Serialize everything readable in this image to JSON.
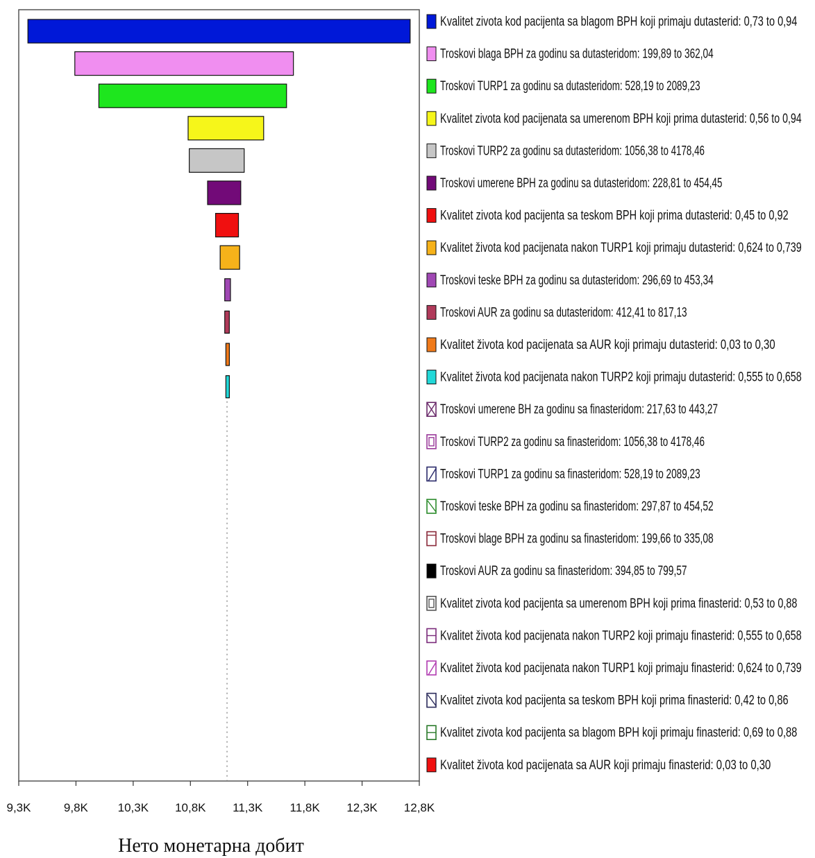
{
  "chart_data": {
    "type": "bar",
    "subtype": "tornado",
    "orientation": "horizontal",
    "xlabel": "Нето монетарна добит",
    "xlim": [
      9.3,
      12.8
    ],
    "x_unit": "K",
    "x_ticks": [
      "9,3K",
      "9,8K",
      "10,3K",
      "10,8K",
      "11,3K",
      "11,8K",
      "12,3K",
      "12,8K"
    ],
    "x_tick_values": [
      9.3,
      9.8,
      10.3,
      10.8,
      11.3,
      11.8,
      12.3,
      12.8
    ],
    "baseline": 11.12,
    "legend_position": "right",
    "series": [
      {
        "name": "Kvalitet zivota kod pacijenta sa blagom BPH koji primaju dutasterid: 0,73 to 0,94",
        "low": 9.38,
        "high": 12.72,
        "color": "#0018d8",
        "swatch": "solid"
      },
      {
        "name": "Troskovi blaga BPH za godinu sa dutasteridom: 199,89 to 362,04",
        "low": 9.79,
        "high": 11.7,
        "color": "#f08ef0",
        "swatch": "solid"
      },
      {
        "name": "Troskovi TURP1 za godinu sa dutasteridom: 528,19 to 2089,23",
        "low": 10.0,
        "high": 11.64,
        "color": "#1ee61e",
        "swatch": "solid"
      },
      {
        "name": "Kvalitet zivota kod pacijenata sa umerenom BPH koji prima dutasterid: 0,56 to 0,94",
        "low": 10.78,
        "high": 11.44,
        "color": "#f6f61a",
        "swatch": "solid"
      },
      {
        "name": "Troskovi TURP2 za godinu sa dutasteridom: 1056,38 to 4178,46",
        "low": 10.79,
        "high": 11.27,
        "color": "#c6c6c6",
        "swatch": "solid"
      },
      {
        "name": "Troskovi umerene BPH za godinu sa dutasteridom: 228,81 to 454,45",
        "low": 10.95,
        "high": 11.24,
        "color": "#720a78",
        "swatch": "solid"
      },
      {
        "name": "Kvalitet zivota kod pacijenta sa teskom BPH koji prima dutasterid: 0,45 to 0,92",
        "low": 11.02,
        "high": 11.22,
        "color": "#f01010",
        "swatch": "solid"
      },
      {
        "name": "Kvalitet života kod pacijenata nakon TURP1 koji primaju dutasterid: 0,624 to 0,739",
        "low": 11.06,
        "high": 11.23,
        "color": "#f6b21a",
        "swatch": "solid"
      },
      {
        "name": "Troskovi teske BPH za godinu sa dutasteridom: 296,69 to 453,34",
        "low": 11.1,
        "high": 11.15,
        "color": "#a048b4",
        "swatch": "solid"
      },
      {
        "name": "Troskovi AUR za godinu sa dutasteridom: 412,41 to 817,13",
        "low": 11.1,
        "high": 11.14,
        "color": "#b03a5a",
        "swatch": "solid"
      },
      {
        "name": "Kvalitet života kod pacijenata sa AUR koji primaju  dutasterid: 0,03 to 0,30",
        "low": 11.11,
        "high": 11.14,
        "color": "#f07a1a",
        "swatch": "solid"
      },
      {
        "name": "Kvalitet života kod pacijenata nakon TURP2 koji primaju dutasterid: 0,555 to 0,658",
        "low": 11.11,
        "high": 11.13,
        "color": "#22d8d8",
        "swatch": "solid"
      },
      {
        "name": "Troskovi umerene BH za godinu sa finasteridom: 217,63 to 443,27",
        "low": 11.12,
        "high": 11.12,
        "color": "#6a2a6a",
        "swatch": "crosshatch"
      },
      {
        "name": "Troskovi TURP2 za godinu sa finasteridom: 1056,38 to 4178,46",
        "low": 11.12,
        "high": 11.12,
        "color": "#9a3a9a",
        "swatch": "box"
      },
      {
        "name": "Troskovi TURP1 za godinu sa finasteridom: 528,19 to 2089,23",
        "low": 11.12,
        "high": 11.12,
        "color": "#2a2a6a",
        "swatch": "diagonal"
      },
      {
        "name": "Troskovi teske BPH za godinu sa finasteridom: 297,87 to 454,52",
        "low": 11.12,
        "high": 11.12,
        "color": "#2a8a2a",
        "swatch": "backdiagonal"
      },
      {
        "name": "Troskovi blage BPH za godinu sa finasteridom: 199,66 to 335,08",
        "low": 11.12,
        "high": 11.12,
        "color": "#8a2a3a",
        "swatch": "topline"
      },
      {
        "name": "Troskovi AUR za godinu sa finasteridom: 394,85 to 799,57",
        "low": 11.12,
        "high": 11.12,
        "color": "#000000",
        "swatch": "solid"
      },
      {
        "name": "Kvalitet zivota kod pacijenta sa umerenom BPH koji prima finasterid: 0,53 to 0,88",
        "low": 11.12,
        "high": 11.12,
        "color": "#555555",
        "swatch": "box"
      },
      {
        "name": "Kvalitet života kod pacijenata nakon TURP2 koji primaju finasterid: 0,555 to 0,658",
        "low": 11.12,
        "high": 11.12,
        "color": "#7a2a7a",
        "swatch": "hline"
      },
      {
        "name": "Kvalitet života kod pacijenata nakon TURP1 koji primaju finasterid: 0,624 to 0,739",
        "low": 11.12,
        "high": 11.12,
        "color": "#b03ab0",
        "swatch": "diagonal"
      },
      {
        "name": "Kvalitet zivota kod pacijenta sa teskom BPH koji prima finasterid: 0,42 to 0,86",
        "low": 11.12,
        "high": 11.12,
        "color": "#2a2a5a",
        "swatch": "backdiagonal"
      },
      {
        "name": "Kvalitet zivota kod pacijenta sa blagom BPH koji primaju finasterid: 0,69 to 0,88",
        "low": 11.12,
        "high": 11.12,
        "color": "#2a7a2a",
        "swatch": "hline"
      },
      {
        "name": "Kvalitet života kod pacijenata sa AUR koji primaju finasterid: 0,03 to 0,30",
        "low": 11.12,
        "high": 11.12,
        "color": "#f01010",
        "swatch": "solid"
      }
    ]
  }
}
